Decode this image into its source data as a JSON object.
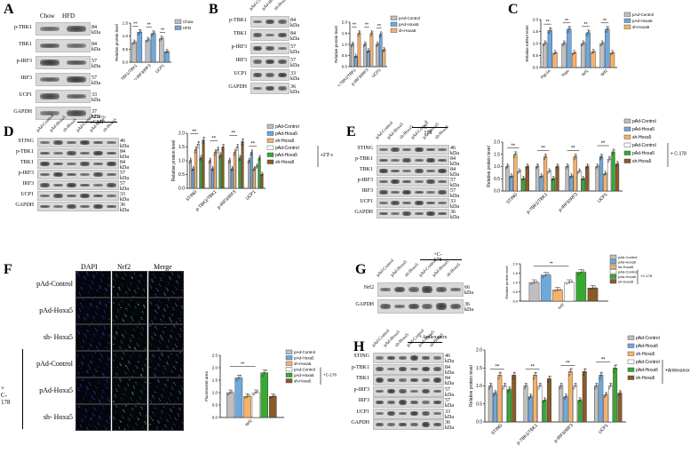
{
  "panels": {
    "A": {
      "letter": "A",
      "lanes": [
        "Chow",
        "HFD"
      ],
      "rows": [
        [
          "p-TBK1",
          "84 kDa"
        ],
        [
          "TBK1",
          "84 kDa"
        ],
        [
          "p-IRF3",
          "57 kDa"
        ],
        [
          "IRF3",
          "57 kDa"
        ],
        [
          "UCP1",
          "33 kDa"
        ],
        [
          "GAPDH",
          "37 kDa"
        ]
      ],
      "legend": [
        "Chow",
        "HFD"
      ]
    },
    "B": {
      "letter": "B",
      "lanes": [
        "pAd-Control",
        "pAd-Hoxa5",
        "sh-Hoxa5"
      ],
      "rows": [
        [
          "p-TBK1",
          "84 kDa"
        ],
        [
          "TBK1",
          "84 kDa"
        ],
        [
          "p-IRF3",
          "57 kDa"
        ],
        [
          "IRF3",
          "57 kDa"
        ],
        [
          "UCP1",
          "33 kDa"
        ],
        [
          "GAPDH",
          "36 kDa"
        ]
      ],
      "legend": [
        "pAd-Control",
        "pAd-Hoxa5",
        "sh-Hoxa5"
      ]
    },
    "C": {
      "letter": "C",
      "legend": [
        "pAd-Control",
        "pAd-Hoxa5",
        "sh-Hoxa5"
      ]
    },
    "D": {
      "letter": "D",
      "lanes": [
        "pAd-Control",
        "pAd-Hoxa5",
        "sh-Hoxa5",
        "pAd-Control",
        "pAd-Hoxa5",
        "sh-Hoxa5"
      ],
      "treat": "+2'3'-cGMP",
      "rows": [
        [
          "STING",
          "46 kDa"
        ],
        [
          "p-TBK1",
          "84 kDa"
        ],
        [
          "TBK1",
          "84 kDa"
        ],
        [
          "p-IRF3",
          "57 kDa"
        ],
        [
          "IRF3",
          "57 kDa"
        ],
        [
          "UCP1",
          "33 kDa"
        ],
        [
          "GAPDH",
          "36 kDa"
        ]
      ],
      "legend": [
        "pAd-Control",
        "pAd-Hoxa5",
        "sh-Hoxa5",
        "pAd-Control",
        "pAd-Hoxa5",
        "sh-Hoxa5"
      ],
      "legend_note": "+2'3'-cGMP"
    },
    "E": {
      "letter": "E",
      "lanes": [
        "pAd-Control",
        "pAd-Hoxa5",
        "sh-Hoxa5",
        "pAd-Control",
        "pAd-Hoxa5",
        "sh-Hoxa5"
      ],
      "treat": "+ C-178",
      "rows": [
        [
          "STING",
          "46 kDa"
        ],
        [
          "p-TBK1",
          "84 kDa"
        ],
        [
          "TBK1",
          "84 kDa"
        ],
        [
          "p-IRF3",
          "57 kDa"
        ],
        [
          "IRF3",
          "57 kDa"
        ],
        [
          "UCP1",
          "33 kDa"
        ],
        [
          "GAPDH",
          "36 kDa"
        ]
      ],
      "legend": [
        "pAd-Control",
        "pAd-Hoxa5",
        "sh-Hoxa5",
        "pAd-Control",
        "pAd-Hoxa5",
        "sh-Hoxa5"
      ],
      "legend_note": "+ C-178"
    },
    "F": {
      "letter": "F",
      "cols": [
        "DAPI",
        "Nrf2",
        "Merge"
      ],
      "rows": [
        "pAd-Control",
        "pAd-Hoxa5",
        "sh- Hoxa5",
        "pAd-Control",
        "pAd-Hoxa5",
        "sh- Hoxa5"
      ],
      "treat": "+ C-178",
      "legend": [
        "pAd-Control",
        "pAd-Hoxa5",
        "sh-Hoxa5",
        "pAd-Control",
        "pAd-Hoxa5",
        "sh-Hoxa5"
      ],
      "legend_note": "+C-178"
    },
    "G": {
      "letter": "G",
      "lanes": [
        "pAd-Control",
        "pAd-Hoxa5",
        "sh-Hoxa5",
        "pAd-Control",
        "pAd-Hoxa5",
        "sh-Hoxa5"
      ],
      "treat": "+C-178",
      "rows": [
        [
          "Nrf2",
          "66 kDa"
        ],
        [
          "GAPDH",
          "36 kDa"
        ]
      ],
      "legend": [
        "pAd-Control",
        "pAd-Hoxa5",
        "sh-Hoxa5",
        "pAd-Control",
        "pAd-Hoxa5",
        "sh-Hoxa5"
      ],
      "legend_note": "+C-178"
    },
    "H": {
      "letter": "H",
      "lanes": [
        "pAd-Control",
        "pAd-Hoxa5",
        "sh-Hoxa5",
        "pAd-Control",
        "pAd-Hoxa5",
        "sh-Hoxa5"
      ],
      "treat": "+Amlexanox",
      "rows": [
        [
          "STING",
          "46 kDa"
        ],
        [
          "p-TBK1",
          "84 kDa"
        ],
        [
          "TBK1",
          "84 kDa"
        ],
        [
          "p-IRF3",
          "57 kDa"
        ],
        [
          "IRF3",
          "57 kDa"
        ],
        [
          "UCP1",
          "33 kDa"
        ],
        [
          "GAPDH",
          "36 kDa"
        ]
      ],
      "legend": [
        "pAd-Control",
        "pAd-Hoxa5",
        "sh-Hoxa5",
        "pAd-Control",
        "pAd-Hoxa5",
        "sh-Hoxa5"
      ],
      "legend_note": "+Amlexanox"
    }
  },
  "colors": {
    "c1": "#bfbfbf",
    "c2": "#6fa8dc",
    "c3": "#f6b26b",
    "c4": "#ffffff",
    "c5": "#38a832",
    "c6": "#8b5a2b"
  },
  "chart_data": [
    {
      "panel": "A",
      "type": "bar",
      "ylabel": "Relative protein level",
      "ylim": [
        0,
        1.5
      ],
      "categories": [
        "p-TBK1/TBK1",
        "p-IRF3/IRF3",
        "UCP1"
      ],
      "series": [
        {
          "name": "Chow",
          "values": [
            0.75,
            0.85,
            0.9
          ]
        },
        {
          "name": "HFD",
          "values": [
            1.15,
            1.1,
            0.4
          ]
        }
      ]
    },
    {
      "panel": "B",
      "type": "bar",
      "ylabel": "Relative protein level",
      "ylim": [
        0,
        2.0
      ],
      "categories": [
        "p-TBK1/TBK1",
        "p-IRF3/IRF3",
        "UCP1"
      ],
      "series": [
        {
          "name": "pAd-Control",
          "values": [
            1.0,
            1.0,
            1.0
          ]
        },
        {
          "name": "pAd-Hoxa5",
          "values": [
            0.45,
            0.7,
            1.45
          ]
        },
        {
          "name": "sh-Hoxa5",
          "values": [
            1.5,
            1.5,
            0.75
          ]
        }
      ]
    },
    {
      "panel": "C",
      "type": "bar",
      "ylabel": "Relative mRNA level",
      "ylim": [
        0,
        2.0
      ],
      "categories": [
        "Pgc1a",
        "Tfam",
        "Nrf1",
        "Nrf2"
      ],
      "series": [
        {
          "name": "pAd-Control",
          "values": [
            1.0,
            1.0,
            1.0,
            1.0
          ]
        },
        {
          "name": "pAd-Hoxa5",
          "values": [
            1.55,
            1.6,
            1.45,
            1.6
          ]
        },
        {
          "name": "sh-Hoxa5",
          "values": [
            0.6,
            0.6,
            0.65,
            0.6
          ]
        }
      ]
    },
    {
      "panel": "D",
      "type": "bar",
      "ylabel": "Relative protein level",
      "ylim": [
        0,
        2.0
      ],
      "categories": [
        "STING",
        "p-TBK1/TBK1",
        "p-IRF3/IRF3",
        "UCP1"
      ],
      "series": [
        {
          "name": "pAd-Control",
          "values": [
            1.0,
            1.0,
            1.0,
            1.0
          ]
        },
        {
          "name": "pAd-Hoxa5",
          "values": [
            0.7,
            0.7,
            0.7,
            1.3
          ]
        },
        {
          "name": "sh-Hoxa5",
          "values": [
            1.4,
            1.3,
            1.3,
            0.7
          ]
        },
        {
          "name": "pAd-Control",
          "values": [
            1.6,
            1.4,
            1.5,
            0.8
          ]
        },
        {
          "name": "pAd-Hoxa5",
          "values": [
            1.1,
            1.2,
            1.1,
            1.1
          ]
        },
        {
          "name": "sh-Hoxa5",
          "values": [
            1.75,
            1.5,
            1.7,
            0.5
          ]
        }
      ]
    },
    {
      "panel": "E",
      "type": "bar",
      "ylabel": "Relative protein level",
      "ylim": [
        0,
        2.0
      ],
      "categories": [
        "STING",
        "p-TBK1/TBK1",
        "p-IRF3/IRF3",
        "UCP1"
      ],
      "series": [
        {
          "name": "pAd-Control",
          "values": [
            1.0,
            1.0,
            1.0,
            1.0
          ]
        },
        {
          "name": "pAd-Hoxa5",
          "values": [
            0.6,
            0.6,
            0.6,
            1.4
          ]
        },
        {
          "name": "sh-Hoxa5",
          "values": [
            1.5,
            1.4,
            1.4,
            0.7
          ]
        },
        {
          "name": "pAd-Control",
          "values": [
            0.8,
            0.8,
            0.8,
            1.3
          ]
        },
        {
          "name": "pAd-Hoxa5",
          "values": [
            0.5,
            0.5,
            0.5,
            1.6
          ]
        },
        {
          "name": "sh-Hoxa5",
          "values": [
            1.0,
            1.0,
            1.0,
            1.1
          ]
        }
      ]
    },
    {
      "panel": "F",
      "type": "bar",
      "ylabel": "Fluorescent area",
      "ylim": [
        0,
        2.5
      ],
      "categories": [
        "Nrf2"
      ],
      "series": [
        {
          "name": "pAd-Control",
          "values": [
            1.0
          ]
        },
        {
          "name": "pAd-Hoxa5",
          "values": [
            1.6
          ]
        },
        {
          "name": "sh-Hoxa5",
          "values": [
            0.85
          ]
        },
        {
          "name": "pAd-Control",
          "values": [
            1.0
          ]
        },
        {
          "name": "pAd-Hoxa5",
          "values": [
            1.8
          ]
        },
        {
          "name": "sh-Hoxa5",
          "values": [
            0.85
          ]
        }
      ]
    },
    {
      "panel": "G",
      "type": "bar",
      "ylabel": "Relative protein level",
      "ylim": [
        0,
        2.0
      ],
      "categories": [
        "Nrf2"
      ],
      "series": [
        {
          "name": "pAd-Control",
          "values": [
            1.0
          ]
        },
        {
          "name": "pAd-Hoxa5",
          "values": [
            1.4
          ]
        },
        {
          "name": "sh-Hoxa5",
          "values": [
            0.6
          ]
        },
        {
          "name": "pAd-Control",
          "values": [
            1.0
          ]
        },
        {
          "name": "pAd-Hoxa5",
          "values": [
            1.55
          ]
        },
        {
          "name": "sh-Hoxa5",
          "values": [
            0.7
          ]
        }
      ]
    },
    {
      "panel": "H",
      "type": "bar",
      "ylabel": "Relative protein level",
      "ylim": [
        0,
        2.0
      ],
      "categories": [
        "STING",
        "p-TBK1/TBK1",
        "p-IRF3/IRF3",
        "UCP1"
      ],
      "series": [
        {
          "name": "pAd-Control",
          "values": [
            1.0,
            1.0,
            1.0,
            1.0
          ]
        },
        {
          "name": "pAd-Hoxa5",
          "values": [
            0.8,
            0.7,
            0.7,
            1.3
          ]
        },
        {
          "name": "sh-Hoxa5",
          "values": [
            1.3,
            1.3,
            1.4,
            0.75
          ]
        },
        {
          "name": "pAd-Control",
          "values": [
            1.0,
            1.0,
            1.0,
            1.0
          ]
        },
        {
          "name": "pAd-Hoxa5",
          "values": [
            0.9,
            0.6,
            0.6,
            1.5
          ]
        },
        {
          "name": "sh-Hoxa5",
          "values": [
            1.3,
            1.2,
            1.4,
            0.8
          ]
        }
      ]
    }
  ]
}
